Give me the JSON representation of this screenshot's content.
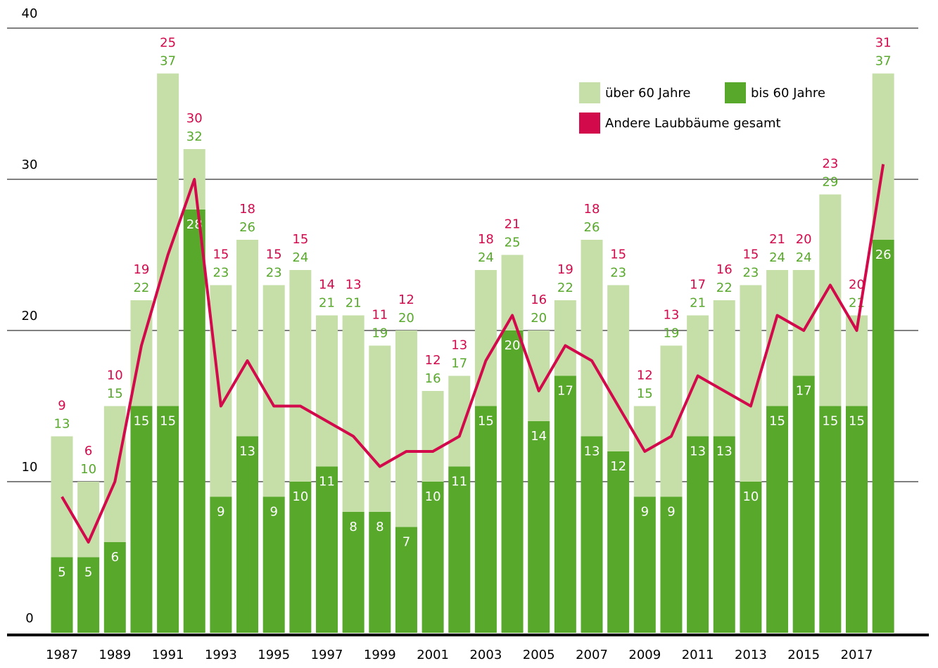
{
  "chart_data": {
    "type": "bar",
    "stacked": true,
    "categories": [
      "1987",
      null,
      "1989",
      null,
      "1991",
      null,
      "1993",
      null,
      "1995",
      null,
      "1997",
      null,
      "1999",
      null,
      "2001",
      null,
      "2003",
      null,
      "2005",
      null,
      "2007",
      null,
      "2009",
      null,
      "2011",
      null,
      "2013",
      null,
      "2015",
      null,
      "2017",
      null
    ],
    "series": [
      {
        "name": "bis 60 Jahre",
        "color": "#58a82c",
        "values": [
          5,
          5,
          6,
          15,
          15,
          28,
          9,
          13,
          9,
          10,
          11,
          8,
          8,
          7,
          10,
          11,
          15,
          20,
          14,
          17,
          13,
          12,
          9,
          9,
          13,
          13,
          10,
          15,
          17,
          15,
          15,
          26
        ]
      },
      {
        "name": "über 60 Jahre",
        "color": "#c6dfa9",
        "values": [
          8,
          5,
          9,
          7,
          22,
          4,
          14,
          13,
          14,
          14,
          10,
          13,
          11,
          13,
          6,
          6,
          9,
          5,
          6,
          5,
          13,
          11,
          6,
          10,
          8,
          9,
          13,
          9,
          7,
          14,
          6,
          11
        ]
      },
      {
        "name": "Andere Laubbäume gesamt",
        "type": "line",
        "color": "#d20a4b",
        "values": [
          9,
          6,
          10,
          19,
          25,
          30,
          15,
          18,
          15,
          15,
          14,
          13,
          11,
          12,
          12,
          13,
          18,
          21,
          16,
          19,
          18,
          15,
          12,
          13,
          17,
          16,
          15,
          21,
          20,
          23,
          20,
          31
        ]
      }
    ],
    "totals": [
      13,
      10,
      15,
      22,
      37,
      32,
      23,
      26,
      23,
      24,
      21,
      21,
      19,
      20,
      16,
      17,
      24,
      25,
      20,
      22,
      26,
      23,
      15,
      19,
      21,
      22,
      23,
      24,
      24,
      29,
      21,
      37
    ],
    "totals_color": "#58a82c",
    "ylim": [
      0,
      40
    ],
    "yticks": [
      0,
      10,
      20,
      30,
      40
    ],
    "grid": true,
    "legend": "top-right"
  }
}
